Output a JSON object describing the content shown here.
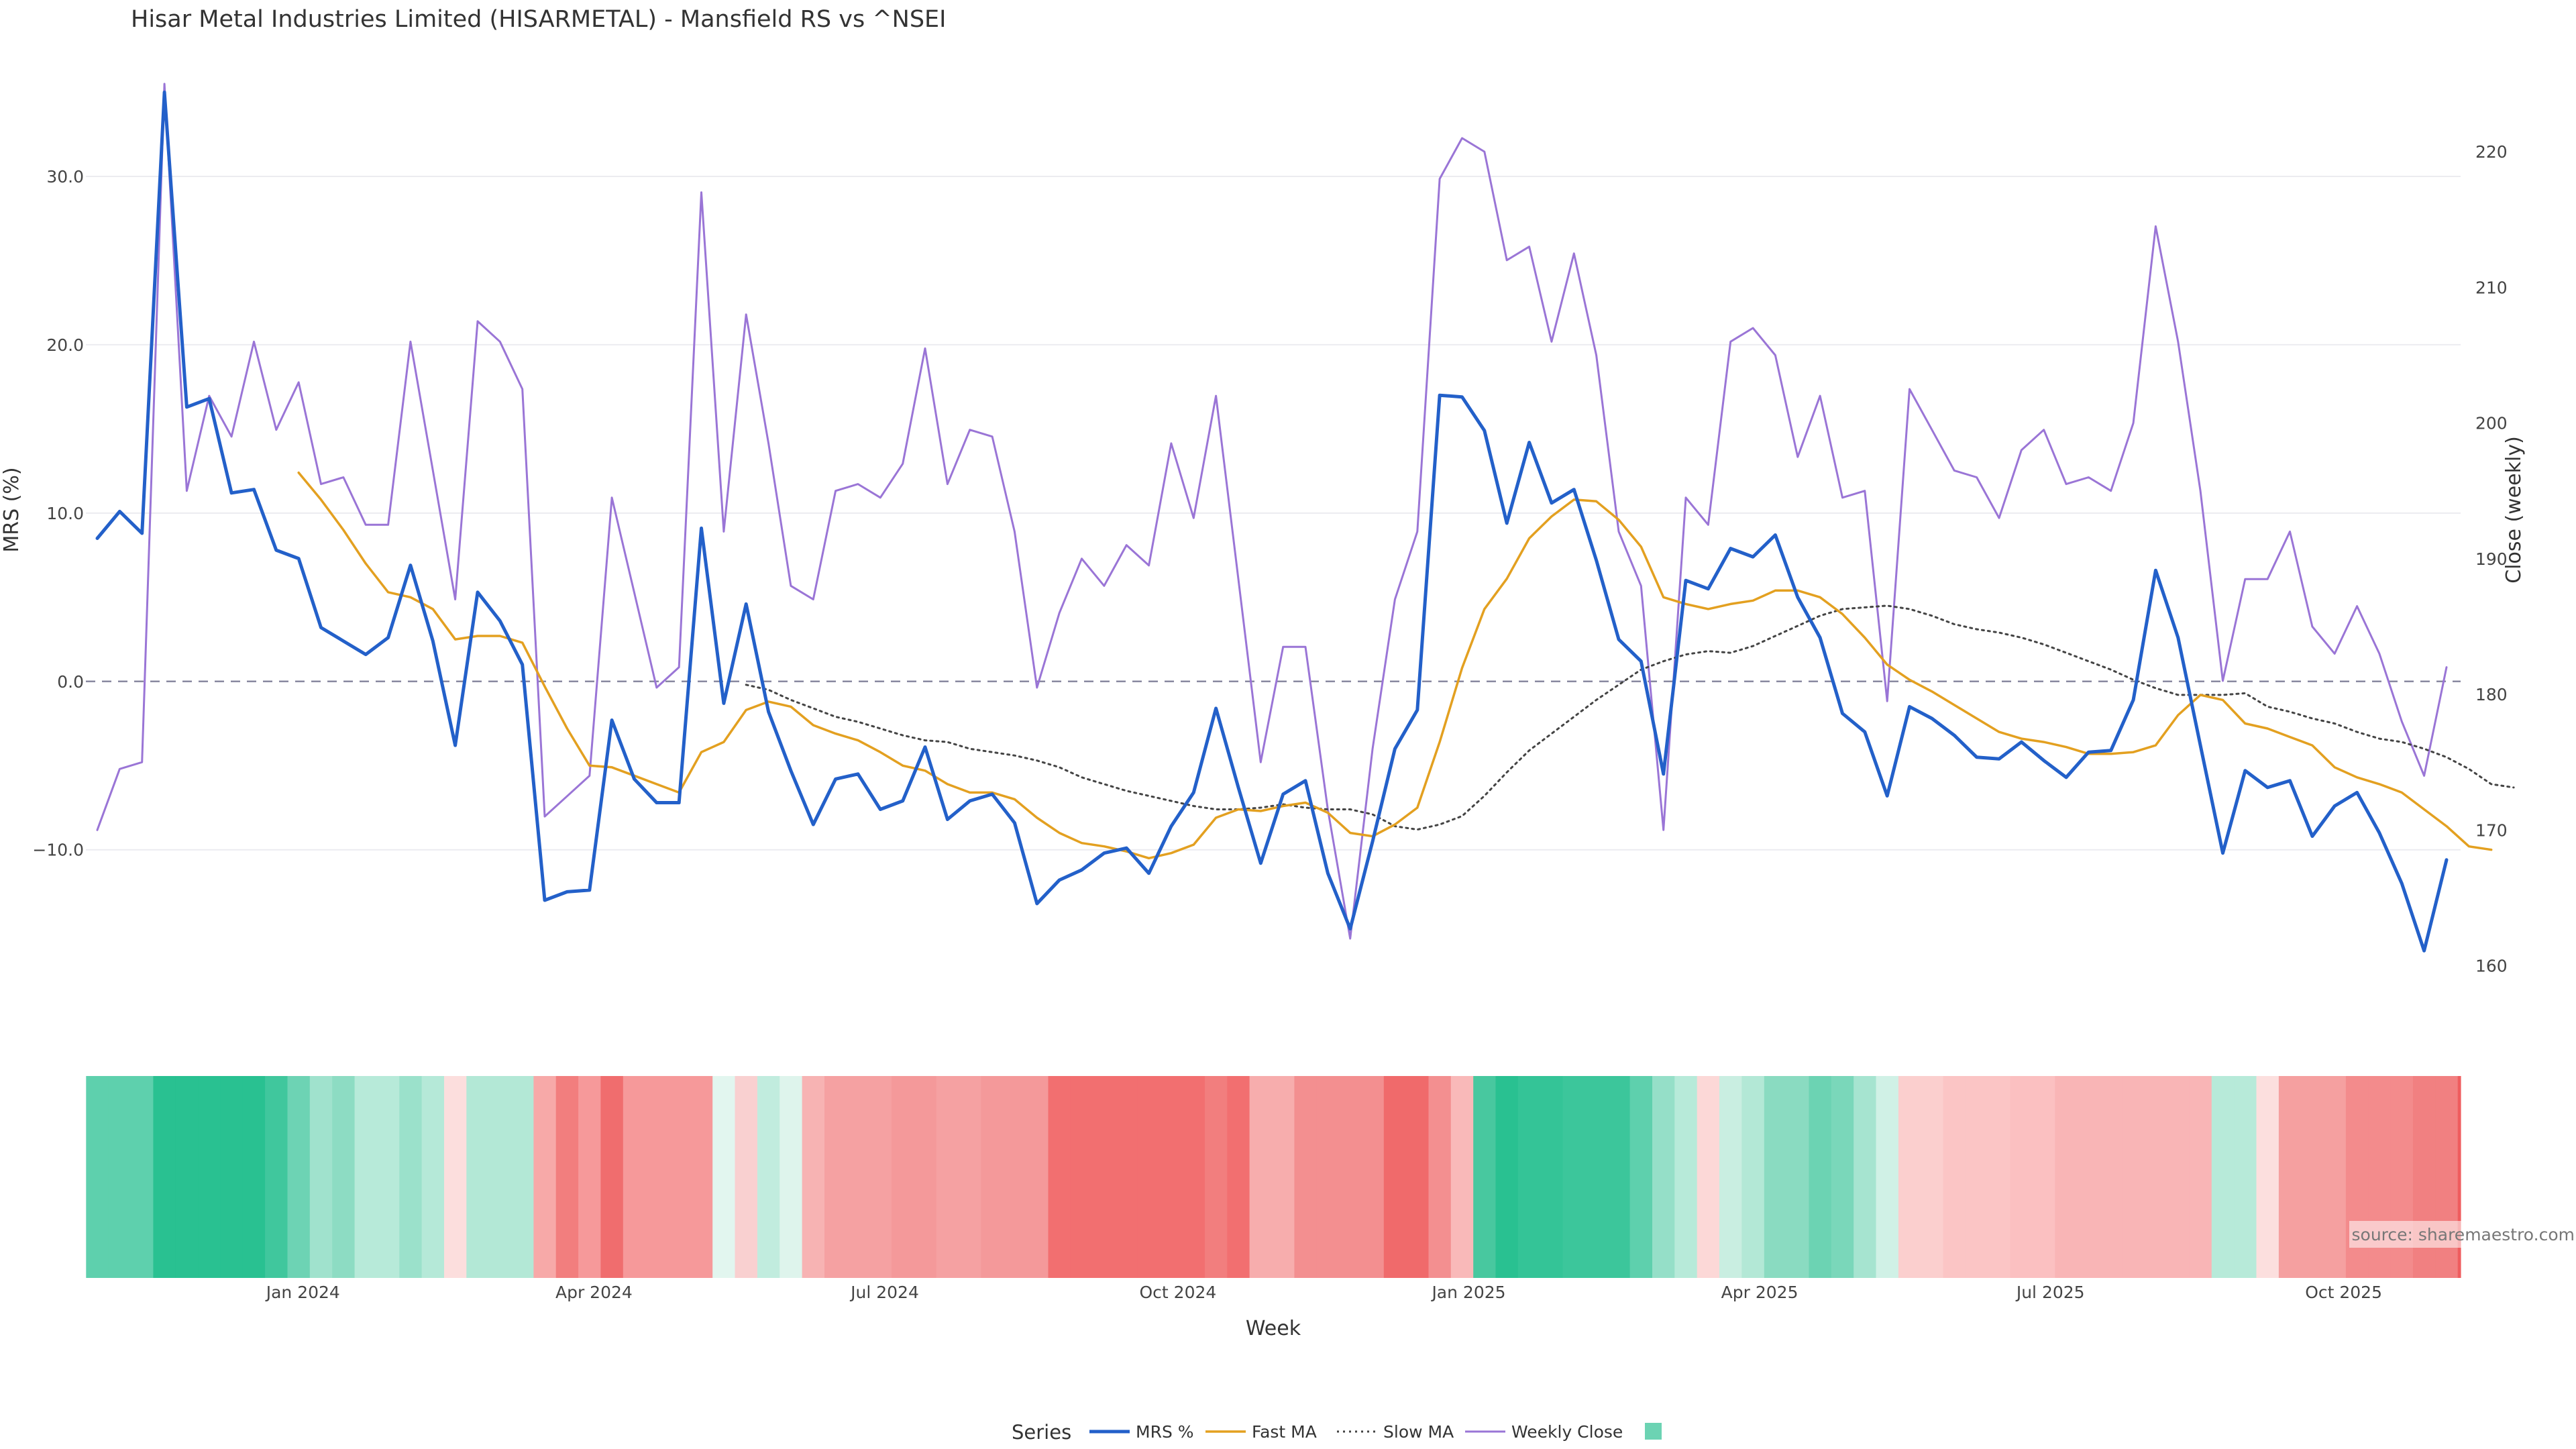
{
  "chart_data": {
    "type": "line",
    "title": "Hisar Metal Industries Limited (HISARMETAL) - Mansfield RS vs ^NSEI",
    "xlabel": "Week",
    "ylabel_left": "MRS (%)",
    "ylabel_right": "Close (weekly)",
    "ylim_left": [
      -18.5,
      35.5
    ],
    "ylim_right": [
      158,
      225
    ],
    "left_ticks": [
      "30.0",
      "20.0",
      "10.0",
      "0.0",
      "−10.0"
    ],
    "left_tick_values": [
      30,
      20,
      10,
      0,
      -10
    ],
    "right_ticks": [
      "220",
      "210",
      "200",
      "190",
      "180",
      "170",
      "160"
    ],
    "right_tick_values": [
      220,
      210,
      200,
      190,
      180,
      170,
      160
    ],
    "x_ticks": [
      "Jan 2024",
      "Apr 2024",
      "Jul 2024",
      "Oct 2024",
      "Jan 2025",
      "Apr 2025",
      "Jul 2025",
      "Oct 2025"
    ],
    "x_tick_weeks": [
      9.2,
      22.2,
      35.2,
      48.3,
      61.3,
      74.3,
      87.3,
      100.4
    ],
    "zero_line": 0,
    "series": [
      {
        "name": "MRS %",
        "color": "#2360c9",
        "style": "solid",
        "axis": "left",
        "values": [
          8.5,
          10.1,
          8.8,
          35,
          16.3,
          16.8,
          11.2,
          11.4,
          7.8,
          7.3,
          3.2,
          2.4,
          1.6,
          2.6,
          6.9,
          2.4,
          -3.8,
          5.3,
          3.6,
          1.0,
          -13.0,
          -12.5,
          -12.4,
          -2.3,
          -5.8,
          -7.2,
          -7.2,
          9.1,
          -1.3,
          4.6,
          -1.8,
          -5.3,
          -8.5,
          -5.8,
          -5.5,
          -7.6,
          -7.1,
          -3.9,
          -8.2,
          -7.1,
          -6.7,
          -8.4,
          -13.2,
          -11.8,
          -11.2,
          -10.2,
          -9.9,
          -11.4,
          -8.6,
          -6.6,
          -1.6,
          -6.3,
          -10.8,
          -6.7,
          -5.9,
          -11.4,
          -14.7,
          -9.5,
          -4.0,
          -1.7,
          17.0,
          16.9,
          14.9,
          9.4,
          14.2,
          10.6,
          11.4,
          7.2,
          2.5,
          1.2,
          -5.5,
          6.0,
          5.5,
          7.9,
          7.4,
          8.7,
          5.0,
          2.6,
          -1.9,
          -3.0,
          -6.8,
          -1.5,
          -2.2,
          -3.2,
          -4.5,
          -4.6,
          -3.6,
          -4.7,
          -5.7,
          -4.2,
          -4.1,
          -1.1,
          6.6,
          2.6,
          -3.8,
          -10.2,
          -5.3,
          -6.3,
          -5.9,
          -9.2,
          -7.4,
          -6.6,
          -9.0,
          -12.0,
          -16.0,
          -10.6
        ]
      },
      {
        "name": "Fast MA",
        "color": "#e3a020",
        "style": "solid",
        "axis": "left",
        "start": 9,
        "values": [
          12.4,
          10.8,
          9.0,
          7.0,
          5.3,
          5.0,
          4.3,
          2.5,
          2.7,
          2.7,
          2.3,
          -0.3,
          -2.8,
          -5.0,
          -5.1,
          -5.6,
          -6.1,
          -6.6,
          -4.2,
          -3.6,
          -1.7,
          -1.2,
          -1.5,
          -2.6,
          -3.1,
          -3.5,
          -4.2,
          -5.0,
          -5.3,
          -6.1,
          -6.6,
          -6.6,
          -7.0,
          -8.1,
          -9.0,
          -9.6,
          -9.8,
          -10.1,
          -10.5,
          -10.2,
          -9.7,
          -8.1,
          -7.6,
          -7.7,
          -7.4,
          -7.2,
          -7.8,
          -9.0,
          -9.2,
          -8.5,
          -7.5,
          -3.6,
          0.8,
          4.3,
          6.1,
          8.5,
          9.8,
          10.8,
          10.7,
          9.6,
          8.0,
          5.0,
          4.6,
          4.3,
          4.6,
          4.8,
          5.4,
          5.4,
          5.0,
          4.0,
          2.6,
          1.0,
          0.1,
          -0.6,
          -1.4,
          -2.2,
          -3.0,
          -3.4,
          -3.6,
          -3.9,
          -4.3,
          -4.3,
          -4.2,
          -3.8,
          -2.0,
          -0.8,
          -1.1,
          -2.5,
          -2.8,
          -3.3,
          -3.8,
          -5.1,
          -5.7,
          -6.1,
          -6.6,
          -7.6,
          -8.6,
          -9.8,
          -10.0
        ]
      },
      {
        "name": "Slow MA",
        "color": "#444444",
        "style": "dotted",
        "axis": "left",
        "start": 29,
        "values": [
          -0.2,
          -0.5,
          -1.1,
          -1.6,
          -2.1,
          -2.4,
          -2.8,
          -3.2,
          -3.5,
          -3.6,
          -4.0,
          -4.2,
          -4.4,
          -4.7,
          -5.1,
          -5.7,
          -6.1,
          -6.5,
          -6.8,
          -7.1,
          -7.4,
          -7.6,
          -7.6,
          -7.5,
          -7.3,
          -7.5,
          -7.6,
          -7.6,
          -7.9,
          -8.6,
          -8.8,
          -8.5,
          -8.0,
          -6.8,
          -5.4,
          -4.1,
          -3.1,
          -2.1,
          -1.1,
          -0.2,
          0.7,
          1.2,
          1.6,
          1.8,
          1.7,
          2.1,
          2.7,
          3.3,
          3.9,
          4.3,
          4.4,
          4.5,
          4.3,
          3.9,
          3.4,
          3.1,
          2.9,
          2.6,
          2.2,
          1.7,
          1.2,
          0.7,
          0.1,
          -0.4,
          -0.8,
          -0.8,
          -0.8,
          -0.7,
          -1.5,
          -1.8,
          -2.2,
          -2.5,
          -3.0,
          -3.4,
          -3.6,
          -4.0,
          -4.5,
          -5.2,
          -6.1,
          -6.3
        ]
      },
      {
        "name": "Weekly Close",
        "color": "#9a75d6",
        "style": "solid",
        "axis": "right",
        "values": [
          170,
          174.5,
          175,
          225,
          195,
          202,
          199,
          206,
          199.5,
          203,
          195.5,
          196,
          192.5,
          192.5,
          206,
          196.5,
          187,
          207.5,
          206,
          202.5,
          171,
          172.5,
          174,
          194.5,
          187.5,
          180.5,
          182,
          217,
          192,
          208,
          198.5,
          188,
          187,
          195,
          195.5,
          194.5,
          197,
          205.5,
          195.5,
          199.5,
          199,
          192,
          180.5,
          186,
          190,
          188,
          191,
          189.5,
          198.5,
          193,
          202,
          188.5,
          175,
          183.5,
          183.5,
          171.5,
          162,
          176,
          187,
          192,
          218,
          221,
          220,
          212,
          213,
          206,
          212.5,
          205,
          192,
          188,
          170,
          194.5,
          192.5,
          206,
          207,
          205,
          197.5,
          202,
          194.5,
          195,
          179.5,
          202.5,
          199.5,
          196.5,
          196,
          193,
          198,
          199.5,
          195.5,
          196,
          195,
          200,
          214.5,
          206,
          195,
          181,
          188.5,
          188.5,
          192,
          185,
          183,
          186.5,
          183,
          178,
          174,
          182
        ]
      }
    ],
    "heatmap_colors": [
      "#5ed0ad",
      "#5ed0ad",
      "#5ed0ad",
      "#29c191",
      "#29c191",
      "#29c191",
      "#29c191",
      "#29c191",
      "#40c79d",
      "#6dd3b4",
      "#a0e2cd",
      "#8ddcc3",
      "#b7ead9",
      "#b7ead9",
      "#9be1cb",
      "#b5e9d8",
      "#fcdedd",
      "#b3e8d6",
      "#b3e8d6",
      "#b3e8d6",
      "#f7a9a8",
      "#f27e7e",
      "#f6999a",
      "#f06d6e",
      "#f6999a",
      "#f6999a",
      "#f6999a",
      "#f6999a",
      "#e2f6ef",
      "#f9d0d0",
      "#c1ecde",
      "#def4ec",
      "#f7b3b3",
      "#f5a1a2",
      "#f5a1a2",
      "#f5a1a2",
      "#f4999a",
      "#f4999a",
      "#f5a1a2",
      "#f5a1a2",
      "#f4999a",
      "#f4999a",
      "#f4999a",
      "#f26f70",
      "#f26f70",
      "#f26f70",
      "#f26f70",
      "#f26f70",
      "#f26f70",
      "#f26f70",
      "#f27e7e",
      "#f26f70",
      "#f7adad",
      "#f7adad",
      "#f38f90",
      "#f38f90",
      "#f38f90",
      "#f38f90",
      "#f06a6b",
      "#f06a6b",
      "#f38f90",
      "#f9b9b9",
      "#48c89f",
      "#29c191",
      "#34c497",
      "#34c497",
      "#3cc69b",
      "#3cc69b",
      "#3cc69b",
      "#5ed0ad",
      "#95dfc8",
      "#b7ead9",
      "#fcd8d7",
      "#c9eee1",
      "#b3e8d6",
      "#8adbc1",
      "#8adbc1",
      "#6cd3b3",
      "#7ad7ba",
      "#a6e4d0",
      "#d0f1e6",
      "#fbcfce",
      "#fbcfce",
      "#fbc5c5",
      "#fbc5c5",
      "#fbc5c5",
      "#fbc0c1",
      "#fbc0c1",
      "#f9b5b6",
      "#f9b5b6",
      "#f9b5b6",
      "#f9b5b6",
      "#f9b5b6",
      "#f9b5b6",
      "#f9b5b6",
      "#b7ead9",
      "#b7ead9",
      "#fcdfde",
      "#f5a0a0",
      "#f5a0a0",
      "#f5a0a0",
      "#f38b8c",
      "#f38b8c",
      "#f38b8c",
      "#f18081",
      "#f18081",
      "#ef5d5f",
      "#ef5d5f"
    ],
    "legend_title": "Series",
    "legend": [
      "MRS %",
      "Fast MA",
      "Slow MA",
      "Weekly Close"
    ],
    "legend_swatch_color": "#6cd3b3",
    "source": "source: sharemaestro.com"
  }
}
